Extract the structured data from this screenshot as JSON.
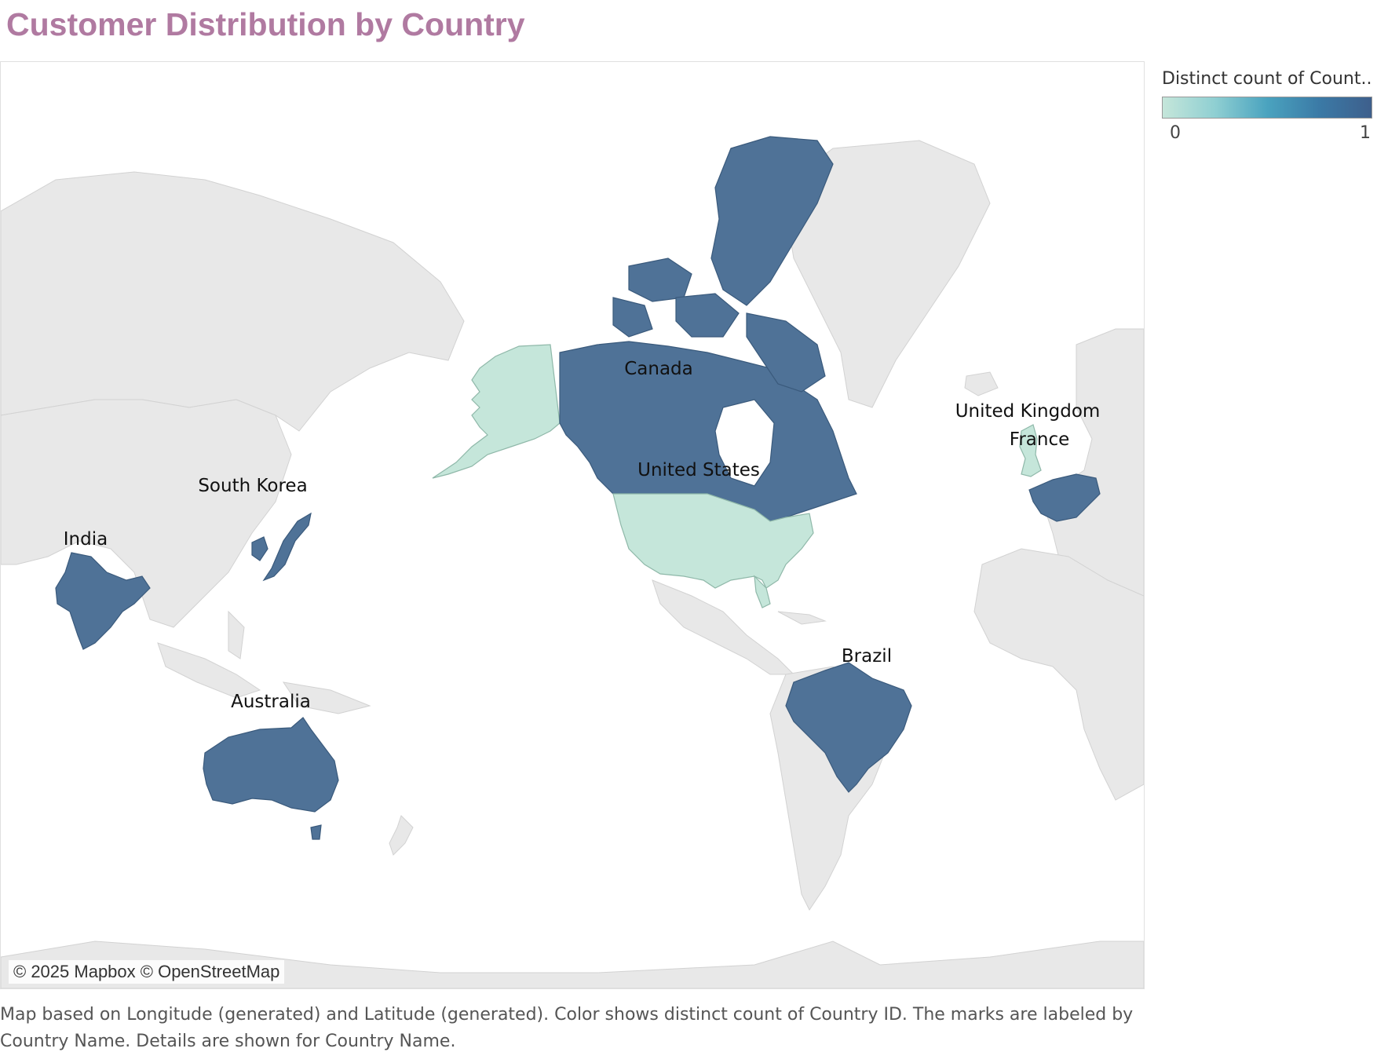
{
  "title": "Customer Distribution by Country",
  "map": {
    "credit": "© 2025 Mapbox © OpenStreetMap",
    "land_color": "#e8e8e8",
    "water_color": "#ffffff",
    "countries": [
      {
        "name": "Canada",
        "value": 1,
        "color": "#4f7297"
      },
      {
        "name": "United States",
        "value": 0,
        "color": "#c5e6da"
      },
      {
        "name": "United Kingdom",
        "value": 0,
        "color": "#c5e6da"
      },
      {
        "name": "France",
        "value": 1,
        "color": "#4f7297"
      },
      {
        "name": "South Korea",
        "value": 1,
        "color": "#4f7297"
      },
      {
        "name": "India",
        "value": 1,
        "color": "#4f7297"
      },
      {
        "name": "Brazil",
        "value": 1,
        "color": "#4f7297"
      },
      {
        "name": "Australia",
        "value": 1,
        "color": "#4f7297"
      }
    ]
  },
  "legend": {
    "title": "Distinct count of Count..",
    "min_label": "0",
    "max_label": "1",
    "color_low": "#c5e6da",
    "color_high": "#3e5f8c"
  },
  "caption": "Map based on Longitude (generated) and Latitude (generated).  Color shows distinct count of Country ID.  The marks are labeled by Country Name.  Details are shown for Country Name."
}
